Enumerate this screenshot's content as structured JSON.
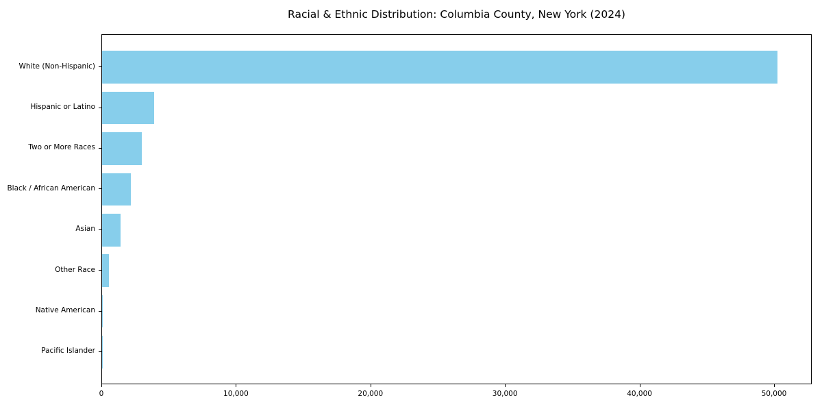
{
  "chart_data": {
    "type": "bar",
    "orientation": "horizontal",
    "title": "Racial & Ethnic Distribution: Columbia County, New York (2024)",
    "categories": [
      "White (Non-Hispanic)",
      "Hispanic or Latino",
      "Two or More Races",
      "Black / African American",
      "Asian",
      "Other Race",
      "Native American",
      "Pacific Islander"
    ],
    "values": [
      50200,
      3880,
      2950,
      2150,
      1360,
      520,
      50,
      20
    ],
    "xlabel": "",
    "ylabel": "",
    "x_ticks": {
      "values": [
        0,
        10000,
        20000,
        30000,
        40000,
        50000
      ],
      "labels": [
        "0",
        "10,000",
        "20,000",
        "30,000",
        "40,000",
        "50,000"
      ]
    },
    "xlim": [
      0,
      52700
    ],
    "grid": false,
    "legend": null,
    "bar_color": "#87CEEB",
    "background_color": "#FFFFFF",
    "spine_color": "#000000",
    "text_color": "#000000"
  }
}
